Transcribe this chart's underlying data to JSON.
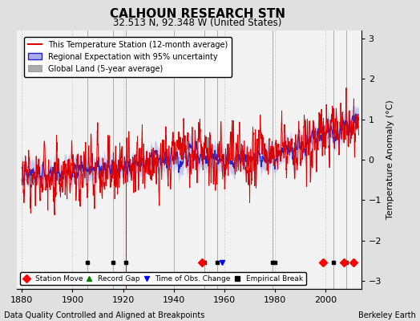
{
  "title": "CALHOUN RESEARCH STN",
  "subtitle": "32.513 N, 92.348 W (United States)",
  "ylabel": "Temperature Anomaly (°C)",
  "xlabel_footer": "Data Quality Controlled and Aligned at Breakpoints",
  "footer_right": "Berkeley Earth",
  "ylim": [
    -3.2,
    3.2
  ],
  "xlim": [
    1878,
    2014
  ],
  "yticks": [
    -3,
    -2,
    -1,
    0,
    1,
    2,
    3
  ],
  "xticks": [
    1880,
    1900,
    1920,
    1940,
    1960,
    1980,
    2000
  ],
  "bg_color": "#e0e0e0",
  "plot_bg_color": "#f2f2f2",
  "legend_entries": [
    "This Temperature Station (12-month average)",
    "Regional Expectation with 95% uncertainty",
    "Global Land (5-year average)"
  ],
  "station_moves": [
    1951,
    1999,
    2007,
    2011
  ],
  "record_gaps": [],
  "obs_changes": [
    1959
  ],
  "empirical_breaks": [
    1906,
    1916,
    1921,
    1952,
    1957,
    1979,
    1980,
    2003,
    2008
  ],
  "segment_lines": [
    1906,
    1916,
    1921,
    1940,
    1952,
    1957,
    1979,
    2003,
    2008
  ],
  "station_color": "#dd0000",
  "regional_color": "#2222cc",
  "regional_band_color": "#aaaaee",
  "global_color": "#aaaaaa"
}
